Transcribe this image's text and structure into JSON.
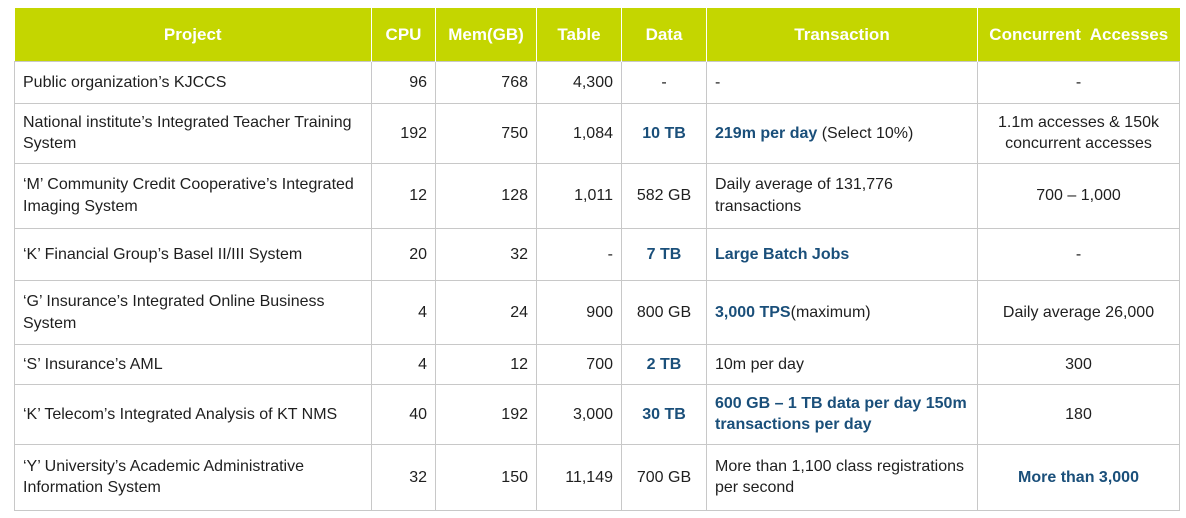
{
  "table": {
    "headers": {
      "project": "Project",
      "cpu": "CPU",
      "mem": "Mem(GB)",
      "table": "Table",
      "data": "Data",
      "transaction": "Transaction",
      "concurrent": "Concurrent  Accesses"
    },
    "rows": [
      {
        "project": "Public organization’s KJCCS",
        "cpu": "96",
        "mem": "768",
        "table": "4,300",
        "data": "-",
        "transaction_bold": "",
        "transaction": "-",
        "concurrent_bold": "",
        "concurrent": "-"
      },
      {
        "project": "National institute’s Integrated Teacher Training System",
        "cpu": "192",
        "mem": "750",
        "table": "1,084",
        "data": "10 TB",
        "transaction_bold": "219m per day",
        "transaction": " (Select 10%)",
        "concurrent_bold": "",
        "concurrent": "1.1m accesses & 150k concurrent accesses"
      },
      {
        "project": "‘M’ Community Credit Cooperative’s Integrated Imaging System",
        "cpu": "12",
        "mem": "128",
        "table": "1,011",
        "data": "582 GB",
        "transaction_bold": "",
        "transaction": "Daily average of 131,776 transactions",
        "concurrent_bold": "",
        "concurrent": "700 – 1,000"
      },
      {
        "project": "‘K’ Financial Group’s Basel II/III System",
        "cpu": "20",
        "mem": "32",
        "table": "-",
        "data": "7 TB",
        "transaction_bold": "Large Batch Jobs",
        "transaction": "",
        "concurrent_bold": "",
        "concurrent": "-"
      },
      {
        "project": "‘G’ Insurance’s Integrated Online Business System",
        "cpu": "4",
        "mem": "24",
        "table": "900",
        "data": "800 GB",
        "transaction_bold": "3,000 TPS",
        "transaction": "(maximum)",
        "concurrent_bold": "",
        "concurrent": "Daily average 26,000"
      },
      {
        "project": "‘S’ Insurance’s AML",
        "cpu": "4",
        "mem": "12",
        "table": "700",
        "data": "2 TB",
        "transaction_bold": "",
        "transaction": "10m per day",
        "concurrent_bold": "",
        "concurrent": "300"
      },
      {
        "project": "‘K’ Telecom’s Integrated Analysis of KT NMS",
        "cpu": "40",
        "mem": "192",
        "table": "3,000",
        "data": "30 TB",
        "transaction_bold": "600 GB – 1 TB data per day 150m transactions per day",
        "transaction": "",
        "concurrent_bold": "",
        "concurrent": "180"
      },
      {
        "project": "‘Y’ University’s Academic Administrative Information System",
        "cpu": "32",
        "mem": "150",
        "table": "11,149",
        "data": "700 GB",
        "transaction_bold": "",
        "transaction": "More than 1,100 class registrations per second",
        "concurrent_bold": "More than 3,000",
        "concurrent": ""
      }
    ],
    "highlight": {
      "data_rows": [
        1,
        3,
        5,
        6
      ]
    }
  },
  "colors": {
    "header_bg": "#c4d600",
    "header_text": "#ffffff",
    "highlight_text": "#1a4f7a",
    "border": "#c8c8c8"
  }
}
